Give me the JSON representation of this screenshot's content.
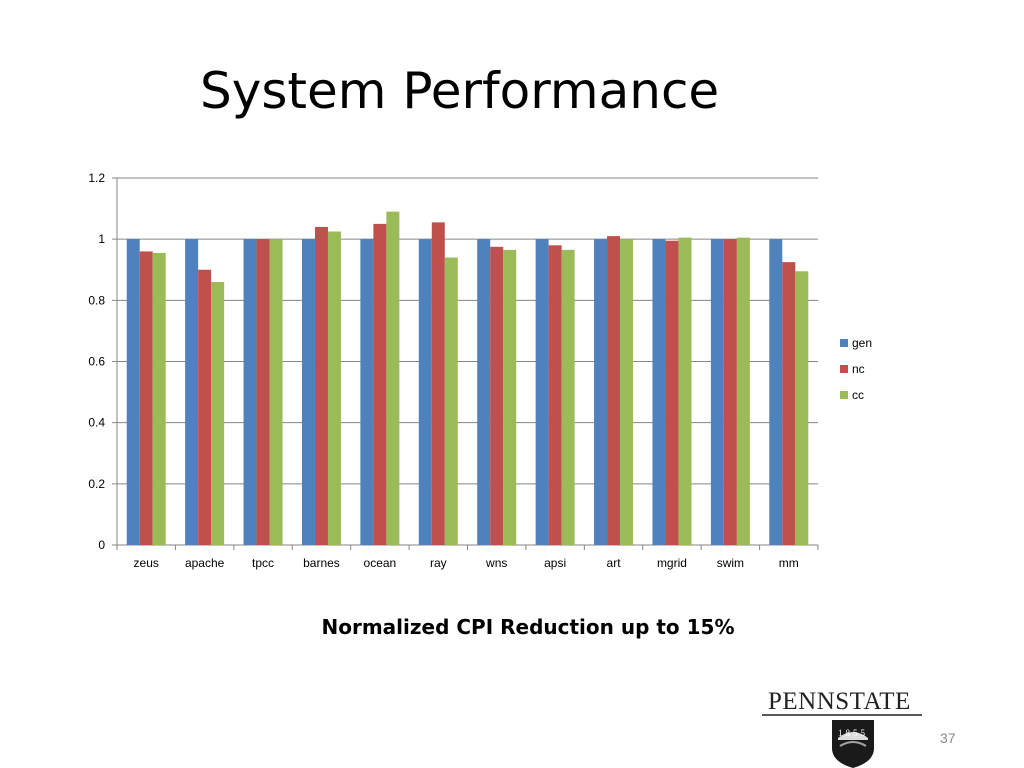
{
  "slide": {
    "title": "System Performance",
    "caption": "Normalized CPI Reduction up to 15%",
    "page_number": "37",
    "logo": {
      "text": "PENNSTATE",
      "year": "1855",
      "icon": "penn-state-shield-logo"
    }
  },
  "colors": {
    "gen": "#4F81BD",
    "nc": "#C0504D",
    "cc": "#9BBB59"
  },
  "chart_data": {
    "type": "bar",
    "categories": [
      "zeus",
      "apache",
      "tpcc",
      "barnes",
      "ocean",
      "ray",
      "wns",
      "apsi",
      "art",
      "mgrid",
      "swim",
      "mm"
    ],
    "series": [
      {
        "name": "gen",
        "values": [
          1,
          1,
          1,
          1,
          1,
          1,
          1,
          1,
          1,
          1,
          1,
          1
        ]
      },
      {
        "name": "nc",
        "values": [
          0.96,
          0.9,
          1.0,
          1.04,
          1.05,
          1.055,
          0.975,
          0.98,
          1.01,
          0.995,
          1.0,
          0.925
        ]
      },
      {
        "name": "cc",
        "values": [
          0.955,
          0.86,
          1.0,
          1.025,
          1.09,
          0.94,
          0.965,
          0.965,
          1.0,
          1.005,
          1.005,
          0.895
        ]
      }
    ],
    "ylim": [
      0,
      1.2
    ],
    "yticks": [
      "0",
      "0.2",
      "0.4",
      "0.6",
      "0.8",
      "1",
      "1.2"
    ],
    "ytick_values": [
      0,
      0.2,
      0.4,
      0.6,
      0.8,
      1,
      1.2
    ],
    "grid": true,
    "legend": "right"
  }
}
